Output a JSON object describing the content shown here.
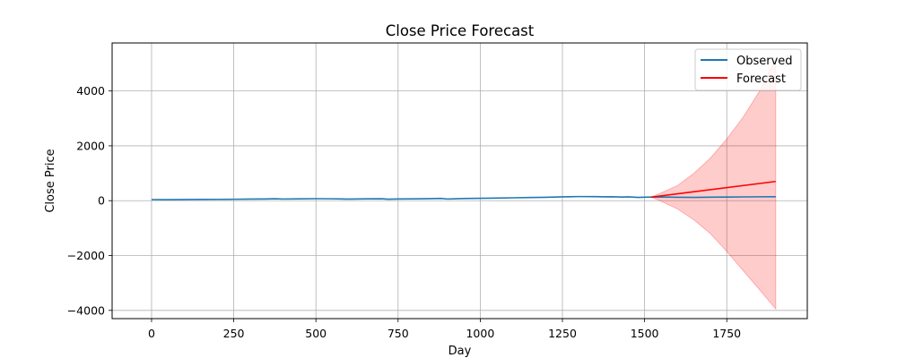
{
  "chart_data": {
    "type": "line",
    "title": "Close Price Forecast",
    "xlabel": "Day",
    "ylabel": "Close Price",
    "xlim": [
      -120,
      1995
    ],
    "ylim": [
      -4300,
      5750
    ],
    "xticks": [
      0,
      250,
      500,
      750,
      1000,
      1250,
      1500,
      1750
    ],
    "yticks": [
      -4000,
      -2000,
      0,
      2000,
      4000
    ],
    "xtick_labels": [
      "0",
      "250",
      "500",
      "750",
      "1000",
      "1250",
      "1500",
      "1750"
    ],
    "ytick_labels": [
      "−4000",
      "−2000",
      "0",
      "2000",
      "4000"
    ],
    "grid": true,
    "legend_position": "top-right",
    "series": [
      {
        "name": "Observed",
        "color": "#1f77b4",
        "x": [
          0,
          50,
          100,
          150,
          200,
          250,
          300,
          350,
          375,
          400,
          450,
          500,
          550,
          600,
          650,
          700,
          720,
          750,
          800,
          850,
          880,
          900,
          950,
          1000,
          1050,
          1100,
          1150,
          1200,
          1250,
          1300,
          1350,
          1380,
          1400,
          1430,
          1450,
          1480,
          1500,
          1520,
          1550,
          1600,
          1650,
          1700,
          1750,
          1800,
          1850,
          1899
        ],
        "y": [
          40,
          38,
          42,
          45,
          48,
          52,
          58,
          62,
          70,
          60,
          65,
          72,
          68,
          58,
          65,
          70,
          55,
          62,
          66,
          75,
          82,
          60,
          78,
          88,
          95,
          105,
          115,
          125,
          140,
          150,
          148,
          140,
          145,
          130,
          140,
          120,
          128,
          130,
          135,
          125,
          120,
          128,
          132,
          138,
          142,
          145
        ]
      },
      {
        "name": "Forecast",
        "color": "#ff0000",
        "x": [
          1520,
          1899
        ],
        "y": [
          130,
          700
        ]
      }
    ],
    "confidence_band": {
      "color": "#ff0000",
      "opacity": 0.2,
      "x": [
        1520,
        1550,
        1600,
        1650,
        1700,
        1750,
        1800,
        1850,
        1899
      ],
      "lower": [
        130,
        -20,
        -300,
        -700,
        -1200,
        -1850,
        -2550,
        -3250,
        -3950
      ],
      "upper": [
        130,
        280,
        550,
        1000,
        1550,
        2250,
        3050,
        4000,
        5200
      ]
    }
  }
}
